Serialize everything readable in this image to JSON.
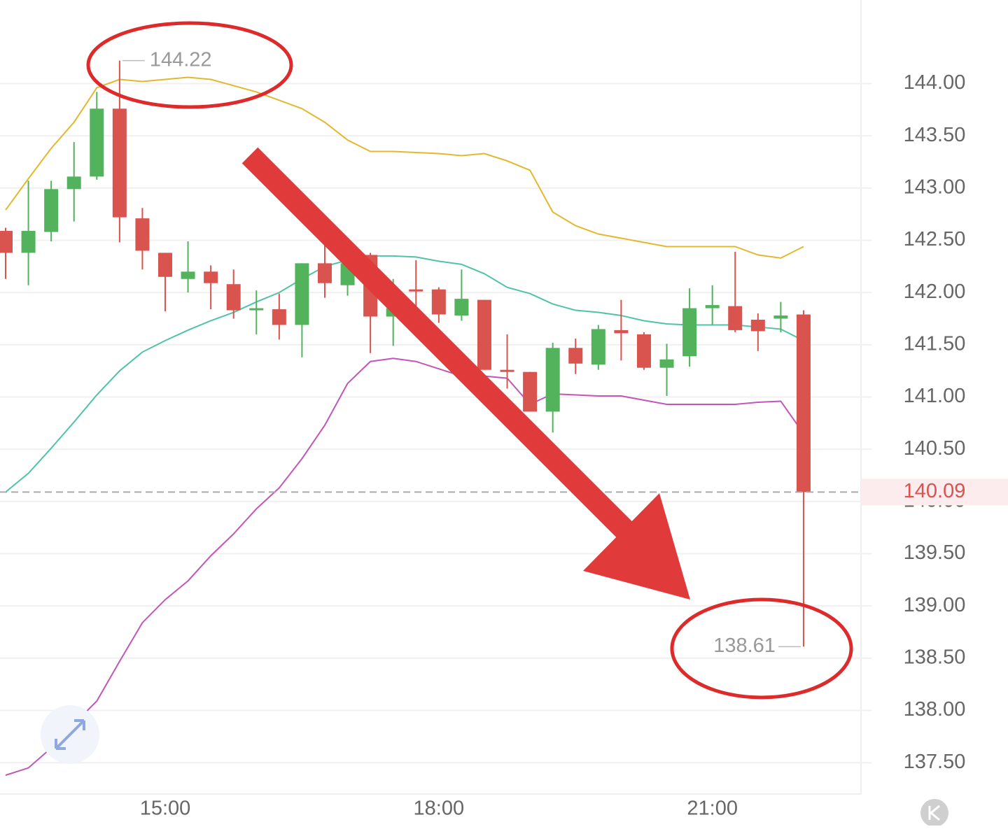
{
  "chart_data": {
    "type": "candlestick",
    "categories": [
      null,
      null,
      null,
      null,
      null,
      null,
      null,
      "15:00",
      null,
      null,
      null,
      null,
      null,
      null,
      null,
      null,
      null,
      null,
      null,
      "18:00",
      null,
      null,
      null,
      null,
      null,
      null,
      null,
      null,
      null,
      null,
      null,
      "21:00",
      null,
      null,
      null,
      null
    ],
    "open": [
      142.59,
      142.38,
      142.58,
      142.99,
      143.11,
      143.76,
      142.71,
      142.38,
      142.13,
      142.2,
      142.08,
      141.83,
      141.84,
      141.69,
      142.28,
      142.07,
      142.36,
      141.77,
      142.03,
      142.03,
      141.78,
      141.93,
      141.26,
      141.24,
      140.86,
      141.47,
      141.31,
      141.64,
      141.6,
      141.28,
      141.39,
      141.85,
      141.87,
      141.74,
      141.75,
      141.79
    ],
    "high": [
      142.62,
      143.07,
      143.07,
      143.44,
      143.92,
      144.22,
      142.81,
      142.38,
      142.49,
      142.26,
      142.22,
      142.02,
      141.99,
      142.28,
      142.46,
      142.39,
      142.38,
      142.13,
      142.31,
      142.05,
      142.22,
      141.93,
      141.6,
      141.24,
      141.52,
      141.56,
      141.69,
      141.93,
      141.62,
      141.51,
      142.04,
      142.07,
      142.39,
      141.8,
      141.91,
      141.83
    ],
    "low": [
      142.13,
      142.07,
      142.49,
      142.68,
      143.08,
      142.48,
      142.22,
      141.82,
      142.0,
      141.84,
      141.75,
      141.6,
      141.55,
      141.38,
      141.95,
      141.97,
      141.42,
      141.49,
      141.85,
      141.71,
      141.73,
      141.26,
      141.08,
      140.86,
      140.66,
      141.22,
      141.26,
      141.35,
      141.26,
      141.01,
      141.29,
      141.69,
      141.62,
      141.44,
      141.62,
      138.61
    ],
    "close": [
      142.38,
      142.59,
      142.99,
      143.11,
      143.76,
      142.72,
      142.4,
      142.15,
      142.2,
      142.09,
      141.83,
      141.85,
      141.69,
      142.28,
      142.09,
      142.28,
      141.77,
      141.85,
      142.01,
      141.79,
      141.94,
      141.26,
      141.24,
      140.86,
      141.47,
      141.32,
      141.65,
      141.61,
      141.28,
      141.36,
      141.85,
      141.88,
      141.64,
      141.63,
      141.78,
      140.09
    ],
    "up_color": "#52b35c",
    "down_color": "#d9534f",
    "overlays": [
      {
        "color": "#e3b82e",
        "values": [
          142.79,
          143.09,
          143.38,
          143.63,
          143.96,
          144.04,
          144.02,
          144.04,
          144.06,
          144.04,
          143.98,
          143.92,
          143.84,
          143.76,
          143.63,
          143.46,
          143.35,
          143.35,
          143.34,
          143.33,
          143.31,
          143.33,
          143.26,
          143.17,
          142.77,
          142.64,
          142.56,
          142.52,
          142.48,
          142.44,
          142.44,
          142.44,
          142.44,
          142.36,
          142.33,
          142.44
        ]
      },
      {
        "color": "#4fc3a8",
        "values": [
          140.09,
          140.27,
          140.51,
          140.76,
          141.02,
          141.25,
          141.43,
          141.54,
          141.64,
          141.73,
          141.81,
          141.91,
          142.0,
          142.13,
          142.25,
          142.31,
          142.35,
          142.35,
          142.34,
          142.3,
          142.27,
          142.18,
          142.05,
          141.99,
          141.89,
          141.83,
          141.81,
          141.78,
          141.73,
          141.7,
          141.69,
          141.69,
          141.69,
          141.67,
          141.65,
          141.54
        ]
      },
      {
        "color": "#c256b8",
        "values": [
          137.38,
          137.45,
          137.64,
          137.87,
          138.09,
          138.47,
          138.84,
          139.06,
          139.24,
          139.48,
          139.69,
          139.93,
          140.13,
          140.41,
          140.73,
          141.13,
          141.34,
          141.37,
          141.34,
          141.27,
          141.2,
          141.2,
          141.18,
          140.93,
          141.03,
          141.02,
          141.01,
          141.01,
          140.97,
          140.93,
          140.93,
          140.93,
          140.93,
          140.95,
          140.96,
          140.65
        ]
      }
    ],
    "ylim": [
      137.2,
      144.8
    ],
    "yticks": [
      {
        "value": 137.5,
        "label": "137.50"
      },
      {
        "value": 138,
        "label": "138.00"
      },
      {
        "value": 138.5,
        "label": "138.50"
      },
      {
        "value": 139,
        "label": "139.00"
      },
      {
        "value": 139.5,
        "label": "139.50"
      },
      {
        "value": 140,
        "label": "140.00"
      },
      {
        "value": 140.5,
        "label": "140.50"
      },
      {
        "value": 141,
        "label": "141.00"
      },
      {
        "value": 141.5,
        "label": "141.50"
      },
      {
        "value": 142,
        "label": "142.00"
      },
      {
        "value": 142.5,
        "label": "142.50"
      },
      {
        "value": 143,
        "label": "143.00"
      },
      {
        "value": 143.5,
        "label": "143.50"
      },
      {
        "value": 144,
        "label": "144.00"
      }
    ],
    "grid": true
  }
}
